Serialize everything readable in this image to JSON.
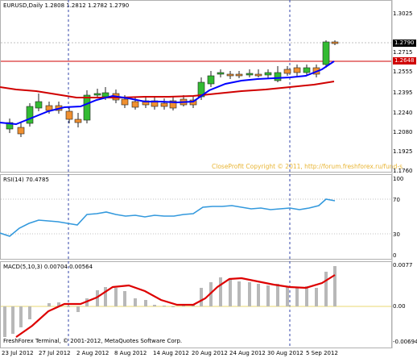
{
  "main": {
    "header": "EURUSD,Daily  1.2808 1.2812 1.2782 1.2790",
    "price_scale": [
      "1.3025",
      "1.2790",
      "1.2715",
      "1.2648",
      "1.2555",
      "1.2395",
      "1.2240",
      "1.2080",
      "1.1925",
      "1.1760"
    ],
    "current_price": "1.2790",
    "line_price": "1.2648",
    "copyright": "CloseProfit Copyright © 2011, http://forum.freshforex.ru/fund-s"
  },
  "rsi": {
    "header": "RSI(14) 70.4785",
    "scale": [
      "100",
      "70",
      "30",
      "0"
    ]
  },
  "macd": {
    "header": "MACD(5,10,3) 0.00704 0.00564",
    "scale": [
      "0.0077",
      "0.00",
      "-0.00694"
    ],
    "copyright": "FreshForex Terminal, © 2001-2012, MetaQuotes Software Corp."
  },
  "dates": [
    "23 Jul 2012",
    "27 Jul 2012",
    "2 Aug 2012",
    "8 Aug 2012",
    "14 Aug 2012",
    "20 Aug 2012",
    "24 Aug 2012",
    "30 Aug 2012",
    "5 Sep 2012"
  ],
  "colors": {
    "bull": "#33bb33",
    "bear": "#f09030",
    "ma_fast": "#0000ff",
    "ma_slow": "#d00000",
    "rsi": "#3399dd",
    "macd_hist": "#b8b8b8",
    "macd_signal": "#dd0000"
  }
}
